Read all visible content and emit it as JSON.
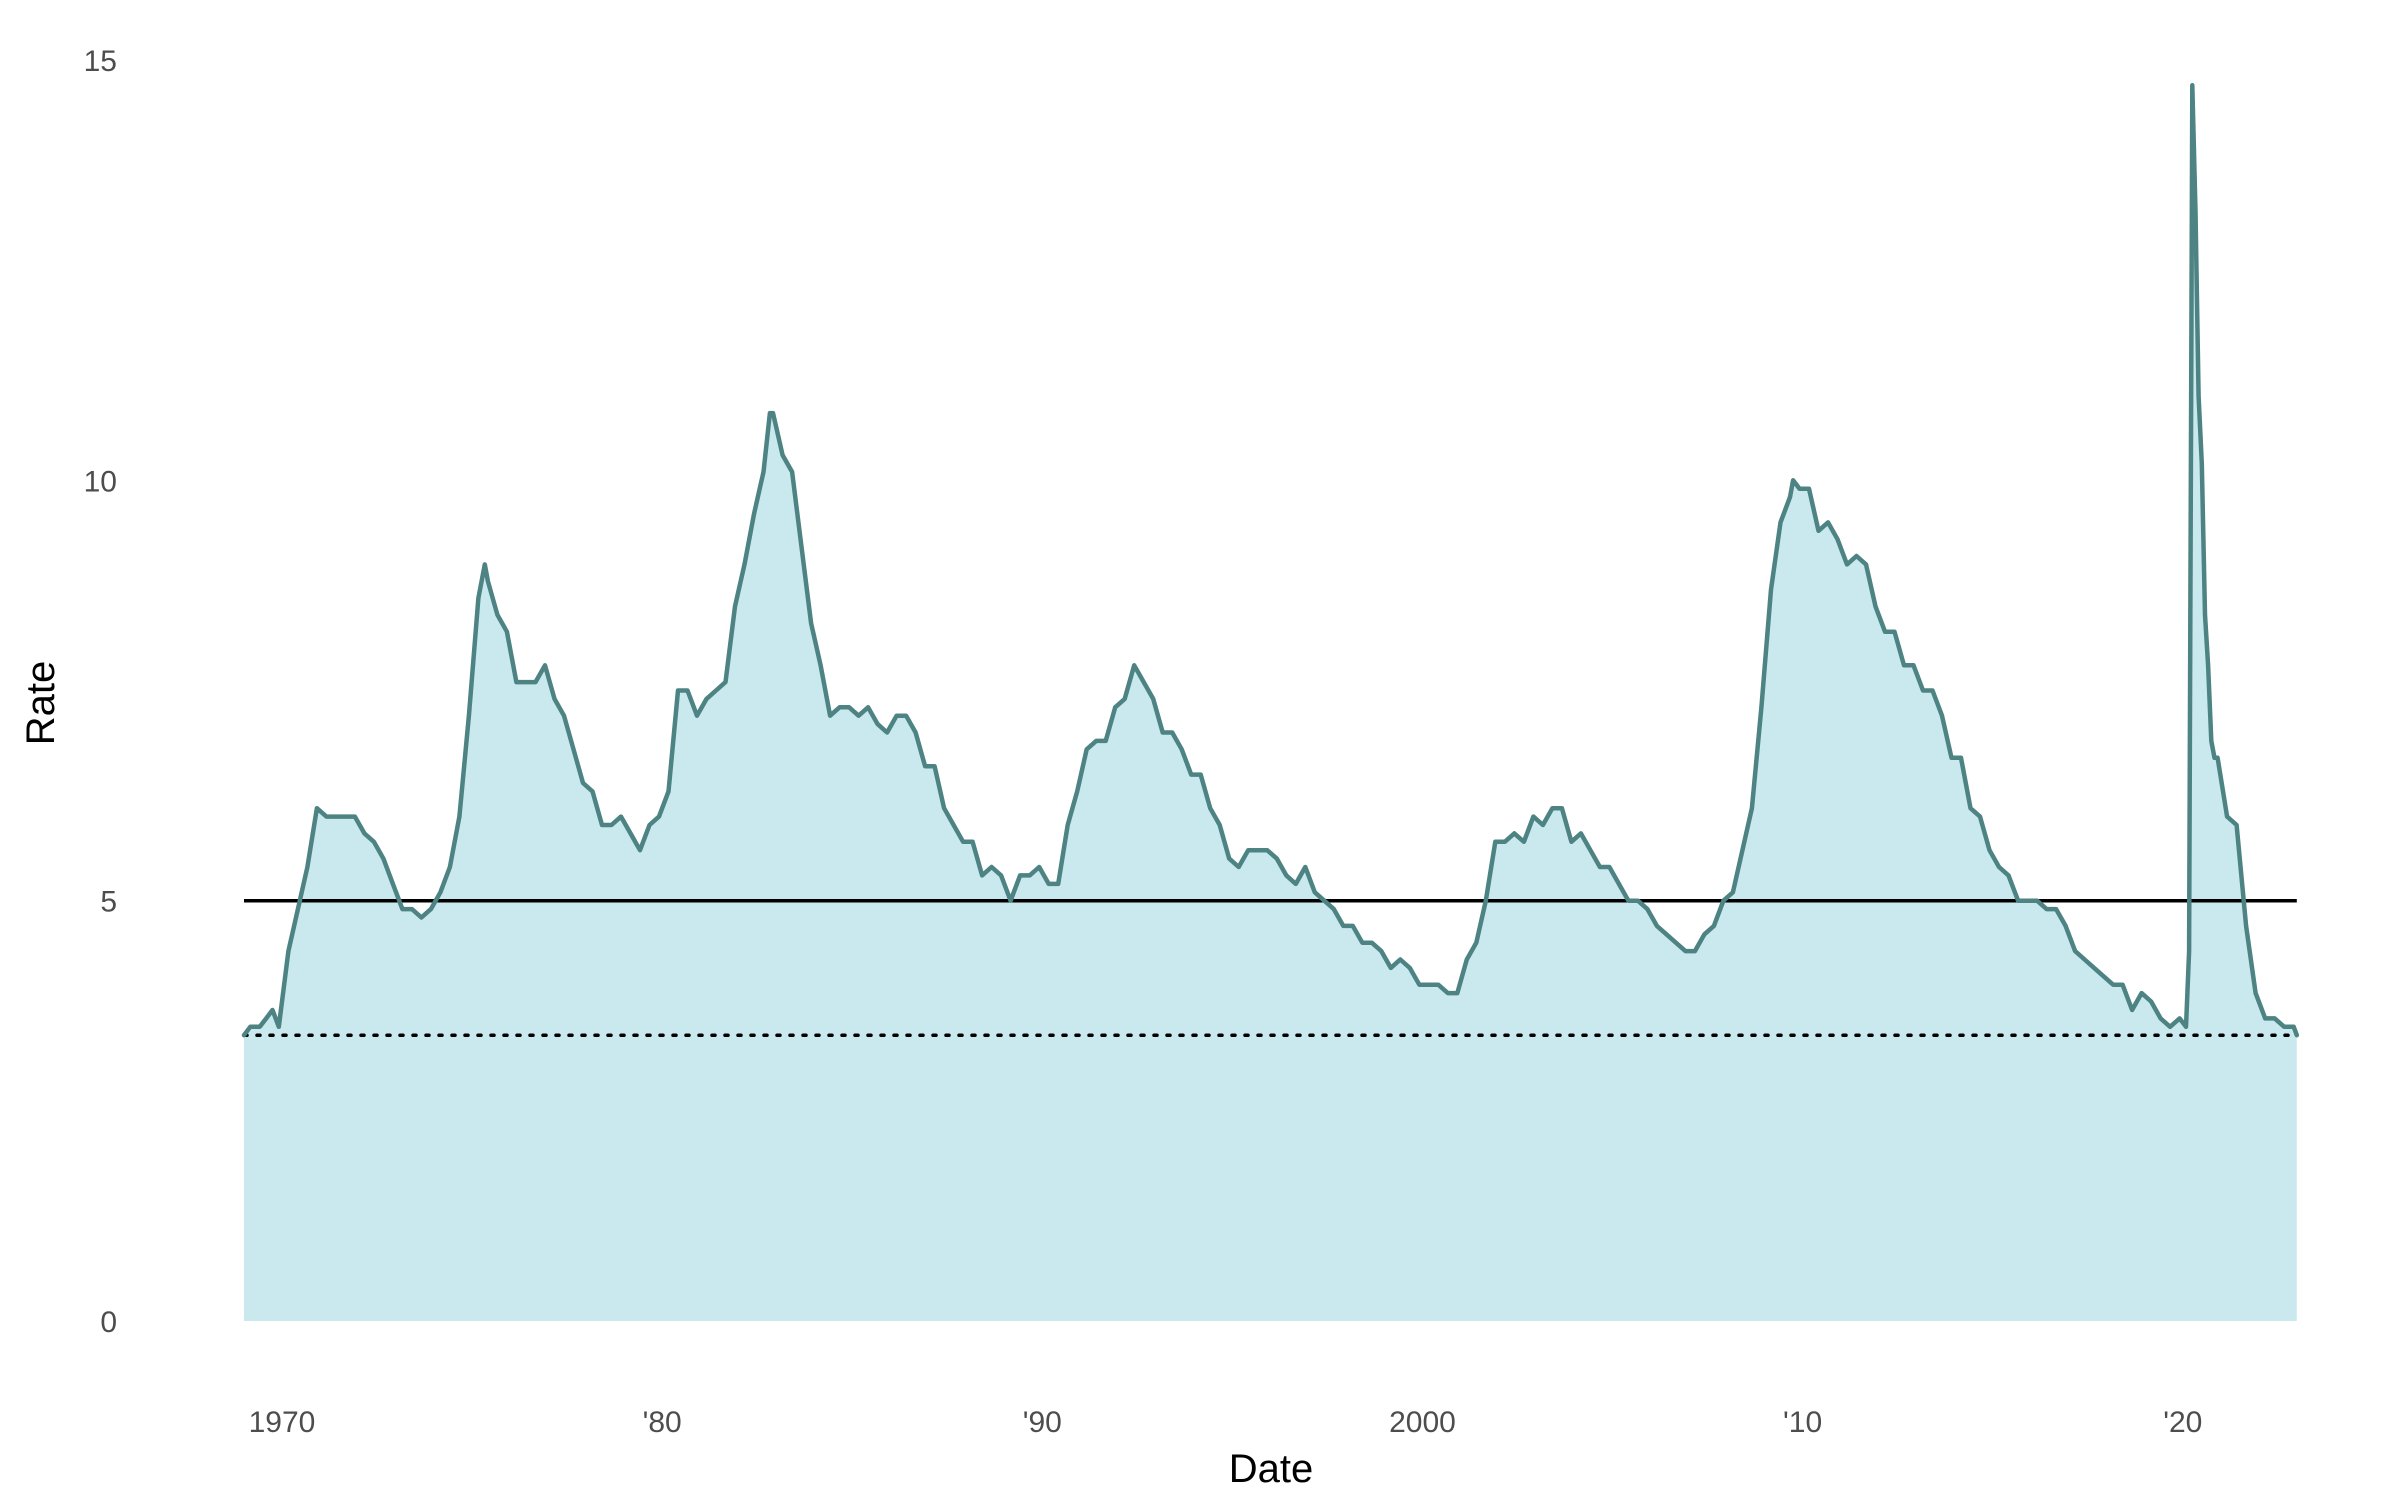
{
  "chart_data": {
    "type": "area",
    "xlabel": "Date",
    "ylabel": "Rate",
    "ylim": [
      0,
      15
    ],
    "xlim": [
      "1969-01",
      "2023-02"
    ],
    "y_ticks": [
      {
        "value": 0,
        "label": "0"
      },
      {
        "value": 5,
        "label": "5"
      },
      {
        "value": 10,
        "label": "10"
      },
      {
        "value": 15,
        "label": "15"
      }
    ],
    "x_ticks": [
      {
        "value": "1970-01",
        "label": "1970"
      },
      {
        "value": "1980-01",
        "label": "'80"
      },
      {
        "value": "1990-01",
        "label": "'90"
      },
      {
        "value": "2000-01",
        "label": "2000"
      },
      {
        "value": "2010-01",
        "label": "'10"
      },
      {
        "value": "2020-01",
        "label": "'20"
      }
    ],
    "grid": false,
    "reference_lines": [
      {
        "y": 5,
        "style": "solid",
        "color": "#000000"
      },
      {
        "y": 3.4,
        "style": "dotted",
        "color": "#000000"
      }
    ],
    "colors": {
      "area_fill": "#c9e9ee",
      "line": "#4e8384",
      "reference": "#000000"
    },
    "series": [
      {
        "x": [
          "1969-01",
          "1969-03",
          "1969-06",
          "1969-08",
          "1969-10",
          "1969-12",
          "1970-03",
          "1970-06",
          "1970-09",
          "1970-12",
          "1971-03",
          "1971-06",
          "1971-09",
          "1971-12",
          "1972-03",
          "1972-06",
          "1972-09",
          "1972-12",
          "1973-03",
          "1973-06",
          "1973-09",
          "1973-12",
          "1974-03",
          "1974-06",
          "1974-09",
          "1974-12",
          "1975-03",
          "1975-05",
          "1975-06",
          "1975-09",
          "1975-12",
          "1976-03",
          "1976-06",
          "1976-09",
          "1976-12",
          "1977-03",
          "1977-06",
          "1977-09",
          "1977-12",
          "1978-03",
          "1978-06",
          "1978-09",
          "1978-12",
          "1979-03",
          "1979-06",
          "1979-09",
          "1979-12",
          "1980-03",
          "1980-06",
          "1980-09",
          "1980-12",
          "1981-03",
          "1981-06",
          "1981-09",
          "1981-12",
          "1982-03",
          "1982-06",
          "1982-09",
          "1982-11",
          "1982-12",
          "1983-03",
          "1983-06",
          "1983-09",
          "1983-12",
          "1984-03",
          "1984-06",
          "1984-09",
          "1984-12",
          "1985-03",
          "1985-06",
          "1985-09",
          "1985-12",
          "1986-03",
          "1986-06",
          "1986-09",
          "1986-12",
          "1987-03",
          "1987-06",
          "1987-09",
          "1987-12",
          "1988-03",
          "1988-06",
          "1988-09",
          "1988-12",
          "1989-03",
          "1989-06",
          "1989-09",
          "1989-12",
          "1990-03",
          "1990-06",
          "1990-09",
          "1990-12",
          "1991-03",
          "1991-06",
          "1991-09",
          "1991-12",
          "1992-03",
          "1992-06",
          "1992-09",
          "1992-12",
          "1993-03",
          "1993-06",
          "1993-09",
          "1993-12",
          "1994-03",
          "1994-06",
          "1994-09",
          "1994-12",
          "1995-03",
          "1995-06",
          "1995-09",
          "1995-12",
          "1996-03",
          "1996-06",
          "1996-09",
          "1996-12",
          "1997-03",
          "1997-06",
          "1997-09",
          "1997-12",
          "1998-03",
          "1998-06",
          "1998-09",
          "1998-12",
          "1999-03",
          "1999-06",
          "1999-09",
          "1999-12",
          "2000-03",
          "2000-06",
          "2000-09",
          "2000-12",
          "2001-03",
          "2001-06",
          "2001-09",
          "2001-12",
          "2002-03",
          "2002-06",
          "2002-09",
          "2002-12",
          "2003-03",
          "2003-06",
          "2003-09",
          "2003-12",
          "2004-03",
          "2004-06",
          "2004-09",
          "2004-12",
          "2005-03",
          "2005-06",
          "2005-09",
          "2005-12",
          "2006-03",
          "2006-06",
          "2006-09",
          "2006-12",
          "2007-03",
          "2007-06",
          "2007-09",
          "2007-12",
          "2008-03",
          "2008-06",
          "2008-09",
          "2008-12",
          "2009-03",
          "2009-06",
          "2009-09",
          "2009-10",
          "2009-12",
          "2010-03",
          "2010-06",
          "2010-09",
          "2010-12",
          "2011-03",
          "2011-06",
          "2011-09",
          "2011-12",
          "2012-03",
          "2012-06",
          "2012-09",
          "2012-12",
          "2013-03",
          "2013-06",
          "2013-09",
          "2013-12",
          "2014-03",
          "2014-06",
          "2014-09",
          "2014-12",
          "2015-03",
          "2015-06",
          "2015-09",
          "2015-12",
          "2016-03",
          "2016-06",
          "2016-09",
          "2016-12",
          "2017-03",
          "2017-06",
          "2017-09",
          "2017-12",
          "2018-03",
          "2018-06",
          "2018-09",
          "2018-12",
          "2019-03",
          "2019-06",
          "2019-09",
          "2019-12",
          "2020-02",
          "2020-03",
          "2020-04",
          "2020-05",
          "2020-06",
          "2020-07",
          "2020-08",
          "2020-09",
          "2020-10",
          "2020-11",
          "2020-12",
          "2021-03",
          "2021-06",
          "2021-09",
          "2021-12",
          "2022-03",
          "2022-06",
          "2022-09",
          "2022-12",
          "2023-01"
        ],
        "y": [
          3.4,
          3.5,
          3.5,
          3.6,
          3.7,
          3.5,
          4.4,
          4.9,
          5.4,
          6.1,
          6.0,
          6.0,
          6.0,
          6.0,
          5.8,
          5.7,
          5.5,
          5.2,
          4.9,
          4.9,
          4.8,
          4.9,
          5.1,
          5.4,
          6.0,
          7.2,
          8.6,
          9.0,
          8.8,
          8.4,
          8.2,
          7.6,
          7.6,
          7.6,
          7.8,
          7.4,
          7.2,
          6.8,
          6.4,
          6.3,
          5.9,
          5.9,
          6.0,
          5.8,
          5.6,
          5.9,
          6.0,
          6.3,
          7.5,
          7.5,
          7.2,
          7.4,
          7.5,
          7.6,
          8.5,
          9.0,
          9.6,
          10.1,
          10.8,
          10.8,
          10.3,
          10.1,
          9.2,
          8.3,
          7.8,
          7.2,
          7.3,
          7.3,
          7.2,
          7.3,
          7.1,
          7.0,
          7.2,
          7.2,
          7.0,
          6.6,
          6.6,
          6.1,
          5.9,
          5.7,
          5.7,
          5.3,
          5.4,
          5.3,
          5.0,
          5.3,
          5.3,
          5.4,
          5.2,
          5.2,
          5.9,
          6.3,
          6.8,
          6.9,
          6.9,
          7.3,
          7.4,
          7.8,
          7.6,
          7.4,
          7.0,
          7.0,
          6.8,
          6.5,
          6.5,
          6.1,
          5.9,
          5.5,
          5.4,
          5.6,
          5.6,
          5.6,
          5.5,
          5.3,
          5.2,
          5.4,
          5.1,
          5.0,
          4.9,
          4.7,
          4.7,
          4.5,
          4.5,
          4.4,
          4.2,
          4.3,
          4.2,
          4.0,
          4.0,
          4.0,
          3.9,
          3.9,
          4.3,
          4.5,
          5.0,
          5.7,
          5.7,
          5.8,
          5.7,
          6.0,
          5.9,
          6.1,
          6.1,
          5.7,
          5.8,
          5.6,
          5.4,
          5.4,
          5.2,
          5.0,
          5.0,
          4.9,
          4.7,
          4.6,
          4.5,
          4.4,
          4.4,
          4.6,
          4.7,
          5.0,
          5.1,
          5.6,
          6.1,
          7.3,
          8.7,
          9.5,
          9.8,
          10.0,
          9.9,
          9.9,
          9.4,
          9.5,
          9.3,
          9.0,
          9.1,
          9.0,
          8.5,
          8.2,
          8.2,
          7.8,
          7.8,
          7.5,
          7.5,
          7.2,
          6.7,
          6.7,
          6.1,
          6.0,
          5.6,
          5.4,
          5.3,
          5.0,
          5.0,
          5.0,
          4.9,
          4.9,
          4.7,
          4.4,
          4.3,
          4.2,
          4.1,
          4.0,
          4.0,
          3.7,
          3.9,
          3.8,
          3.6,
          3.5,
          3.6,
          3.5,
          4.4,
          14.7,
          13.2,
          11.0,
          10.2,
          8.4,
          7.8,
          6.9,
          6.7,
          6.7,
          6.0,
          5.9,
          4.7,
          3.9,
          3.6,
          3.6,
          3.5,
          3.5,
          3.4
        ]
      }
    ]
  }
}
